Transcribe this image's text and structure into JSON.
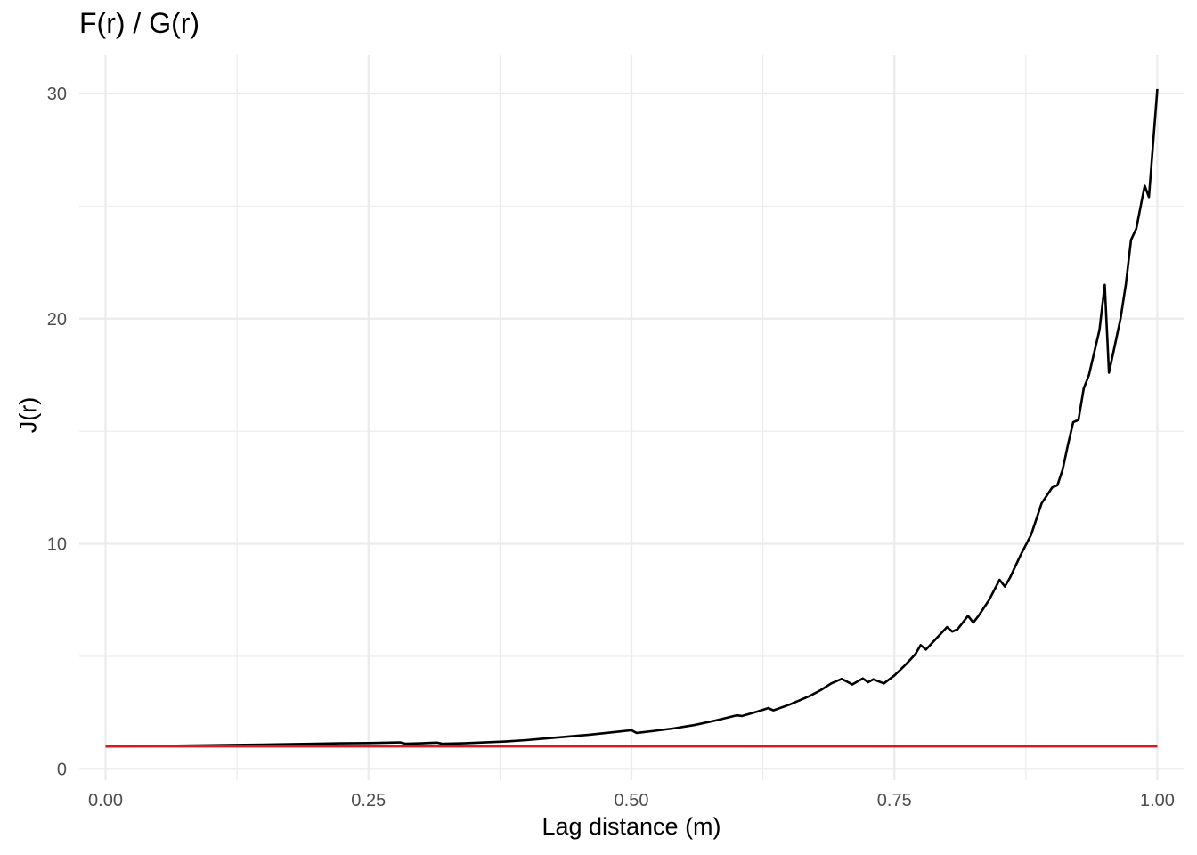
{
  "chart_data": {
    "type": "line",
    "title": "F(r) / G(r)",
    "xlabel": "Lag distance (m)",
    "ylabel": "J(r)",
    "xlim": [
      -0.025,
      1.025
    ],
    "ylim": [
      -0.5,
      31.7
    ],
    "x_ticks": [
      0.0,
      0.25,
      0.5,
      0.75,
      1.0
    ],
    "x_tick_labels": [
      "0.00",
      "0.25",
      "0.50",
      "0.75",
      "1.00"
    ],
    "y_ticks": [
      0,
      10,
      20,
      30
    ],
    "y_tick_labels": [
      "0",
      "10",
      "20",
      "30"
    ],
    "grid": true,
    "background": "#ffffff",
    "grid_color": "#ebebeb",
    "series": [
      {
        "color": "#000000",
        "x": [
          0.0,
          0.05,
          0.1,
          0.15,
          0.2,
          0.225,
          0.25,
          0.28,
          0.285,
          0.3,
          0.315,
          0.32,
          0.34,
          0.36,
          0.38,
          0.4,
          0.42,
          0.44,
          0.46,
          0.48,
          0.5,
          0.505,
          0.52,
          0.54,
          0.56,
          0.58,
          0.6,
          0.605,
          0.62,
          0.63,
          0.635,
          0.65,
          0.66,
          0.67,
          0.68,
          0.69,
          0.7,
          0.71,
          0.72,
          0.725,
          0.73,
          0.74,
          0.75,
          0.76,
          0.77,
          0.775,
          0.78,
          0.79,
          0.8,
          0.805,
          0.81,
          0.82,
          0.825,
          0.83,
          0.84,
          0.85,
          0.855,
          0.86,
          0.87,
          0.88,
          0.89,
          0.9,
          0.905,
          0.91,
          0.915,
          0.92,
          0.925,
          0.93,
          0.935,
          0.945,
          0.95,
          0.954,
          0.96,
          0.965,
          0.97,
          0.975,
          0.98,
          0.985,
          0.988,
          0.992,
          1.0
        ],
        "y": [
          1.0,
          1.02,
          1.05,
          1.08,
          1.12,
          1.14,
          1.15,
          1.18,
          1.12,
          1.14,
          1.17,
          1.12,
          1.14,
          1.18,
          1.22,
          1.28,
          1.36,
          1.44,
          1.52,
          1.62,
          1.72,
          1.6,
          1.68,
          1.8,
          1.95,
          2.15,
          2.38,
          2.35,
          2.55,
          2.7,
          2.6,
          2.85,
          3.05,
          3.25,
          3.5,
          3.8,
          4.0,
          3.75,
          4.02,
          3.85,
          3.98,
          3.8,
          4.15,
          4.6,
          5.1,
          5.5,
          5.3,
          5.8,
          6.3,
          6.1,
          6.2,
          6.8,
          6.5,
          6.8,
          7.5,
          8.4,
          8.1,
          8.5,
          9.5,
          10.4,
          11.8,
          12.5,
          12.6,
          13.3,
          14.4,
          15.4,
          15.5,
          16.9,
          17.5,
          19.5,
          21.5,
          17.6,
          18.9,
          20.0,
          21.5,
          23.5,
          24.0,
          25.2,
          25.9,
          25.4,
          30.2
        ]
      },
      {
        "color": "#e4141c",
        "x": [
          0.0,
          1.0
        ],
        "y": [
          1.0,
          1.0
        ]
      }
    ]
  }
}
